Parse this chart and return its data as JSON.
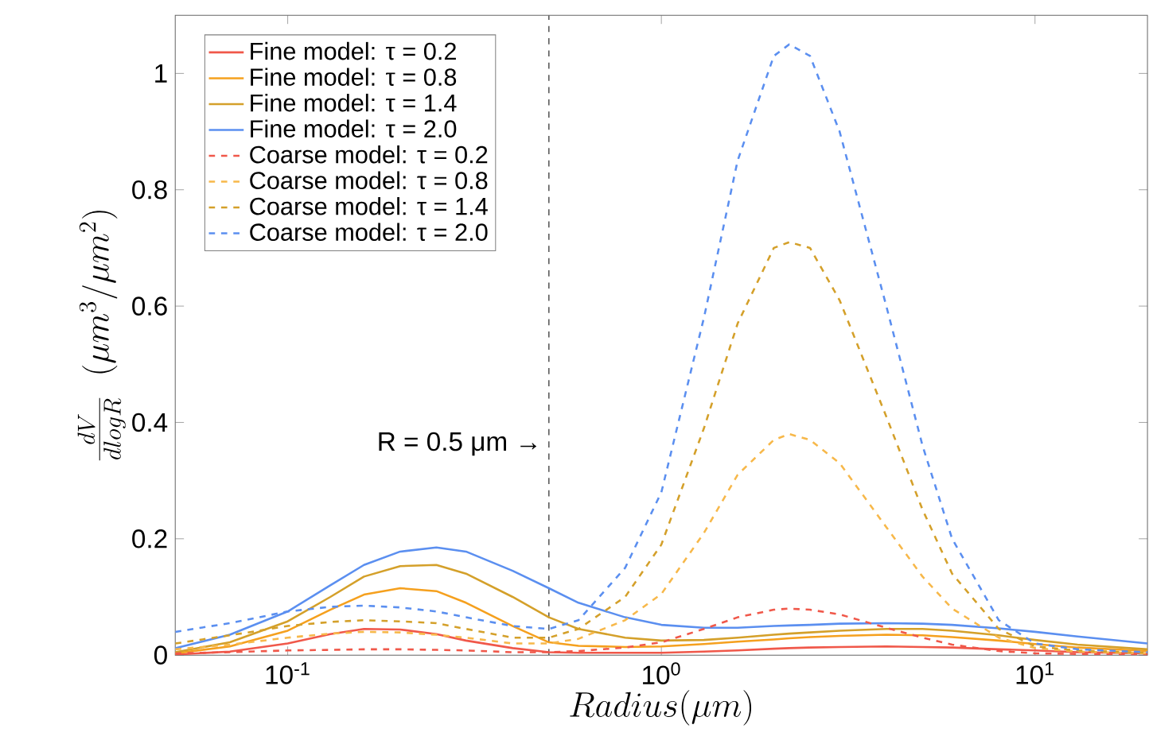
{
  "chart_data": {
    "type": "line",
    "xlabel": "Radius(\\mu m)",
    "ylabel": "\\frac{dV}{dlogR}\\ \\ (\\mu m^3/\\mu m^2)",
    "log": "x",
    "legend": "top left",
    "grid": false,
    "xlim": [
      0.05,
      20
    ],
    "ylim": [
      0,
      1.1
    ],
    "xticks": [
      {
        "value": 0.1,
        "label": "10$^{-1}$"
      },
      {
        "value": 1,
        "label": "10$^{0}$"
      },
      {
        "value": 10,
        "label": "10$^{1}$"
      }
    ],
    "yticks": [
      0,
      0.2,
      0.4,
      0.6,
      0.8,
      1
    ],
    "ref_lines": [
      {
        "axis": "x",
        "value": 0.5,
        "label": "R = 0.5 μm →",
        "color": "#555555",
        "line_style": "dashed"
      }
    ],
    "x": [
      0.05,
      0.07,
      0.1,
      0.13,
      0.16,
      0.2,
      0.25,
      0.3,
      0.4,
      0.5,
      0.6,
      0.8,
      1,
      1.3,
      1.6,
      2,
      2.2,
      2.5,
      3,
      4,
      5,
      6,
      8,
      10,
      13,
      20
    ],
    "series": [
      {
        "name": "Fine model: τ = 0.2",
        "color": "#f0584a",
        "line_style": "solid",
        "values": [
          0.001,
          0.006,
          0.02,
          0.036,
          0.045,
          0.044,
          0.036,
          0.025,
          0.012,
          0.005,
          0.004,
          0.004,
          0.004,
          0.006,
          0.008,
          0.011,
          0.012,
          0.013,
          0.014,
          0.015,
          0.014,
          0.013,
          0.01,
          0.008,
          0.005,
          0.003
        ]
      },
      {
        "name": "Fine model: τ = 0.8",
        "color": "#f5a01e",
        "line_style": "solid",
        "values": [
          0.003,
          0.015,
          0.042,
          0.078,
          0.104,
          0.115,
          0.11,
          0.09,
          0.05,
          0.022,
          0.016,
          0.014,
          0.015,
          0.019,
          0.023,
          0.027,
          0.029,
          0.031,
          0.033,
          0.035,
          0.034,
          0.031,
          0.025,
          0.019,
          0.013,
          0.007
        ]
      },
      {
        "name": "Fine model: τ = 1.4",
        "color": "#d4a02a",
        "line_style": "solid",
        "values": [
          0.005,
          0.022,
          0.058,
          0.1,
          0.135,
          0.153,
          0.155,
          0.14,
          0.1,
          0.065,
          0.045,
          0.03,
          0.025,
          0.026,
          0.03,
          0.035,
          0.037,
          0.039,
          0.042,
          0.045,
          0.045,
          0.042,
          0.034,
          0.026,
          0.018,
          0.01
        ]
      },
      {
        "name": "Fine model: τ = 2.0",
        "color": "#5b8ff0",
        "line_style": "solid",
        "values": [
          0.012,
          0.035,
          0.075,
          0.12,
          0.155,
          0.178,
          0.185,
          0.178,
          0.145,
          0.115,
          0.09,
          0.065,
          0.052,
          0.047,
          0.047,
          0.05,
          0.051,
          0.052,
          0.054,
          0.055,
          0.054,
          0.052,
          0.046,
          0.04,
          0.032,
          0.02
        ]
      },
      {
        "name": "Coarse model: τ = 0.2",
        "color": "#f0584a",
        "line_style": "dashed",
        "values": [
          0.003,
          0.005,
          0.008,
          0.009,
          0.01,
          0.01,
          0.009,
          0.008,
          0.005,
          0.005,
          0.007,
          0.013,
          0.022,
          0.045,
          0.065,
          0.078,
          0.08,
          0.078,
          0.07,
          0.047,
          0.03,
          0.018,
          0.007,
          0.003,
          0.002,
          0.001
        ]
      },
      {
        "name": "Coarse model: τ = 0.8",
        "color": "#f7b84a",
        "line_style": "dashed",
        "values": [
          0.01,
          0.018,
          0.03,
          0.037,
          0.04,
          0.039,
          0.035,
          0.03,
          0.02,
          0.02,
          0.028,
          0.06,
          0.105,
          0.21,
          0.31,
          0.37,
          0.38,
          0.37,
          0.33,
          0.22,
          0.135,
          0.08,
          0.03,
          0.012,
          0.006,
          0.003
        ]
      },
      {
        "name": "Coarse model: τ = 1.4",
        "color": "#d4a02a",
        "line_style": "dashed",
        "values": [
          0.02,
          0.034,
          0.05,
          0.057,
          0.06,
          0.058,
          0.055,
          0.045,
          0.03,
          0.03,
          0.045,
          0.1,
          0.19,
          0.39,
          0.57,
          0.7,
          0.71,
          0.7,
          0.61,
          0.41,
          0.25,
          0.14,
          0.045,
          0.015,
          0.008,
          0.004
        ]
      },
      {
        "name": "Coarse model: τ = 2.0",
        "color": "#5b8ff0",
        "line_style": "dashed",
        "values": [
          0.04,
          0.055,
          0.075,
          0.083,
          0.085,
          0.082,
          0.075,
          0.065,
          0.05,
          0.045,
          0.06,
          0.15,
          0.28,
          0.58,
          0.85,
          1.03,
          1.05,
          1.03,
          0.9,
          0.6,
          0.36,
          0.2,
          0.06,
          0.02,
          0.01,
          0.005
        ]
      }
    ]
  }
}
